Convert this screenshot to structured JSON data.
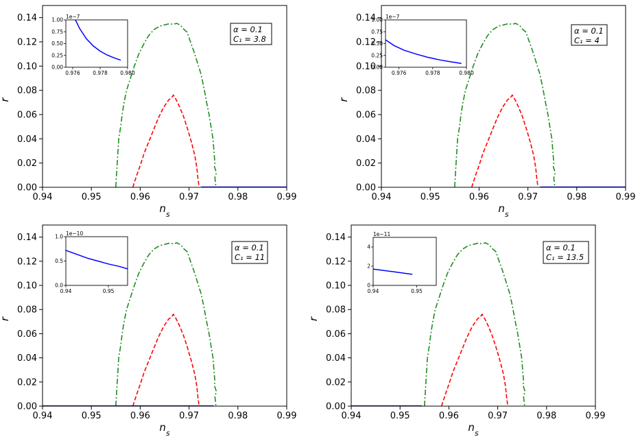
{
  "figure": {
    "contour_styles": {
      "outer": {
        "color": "#228B22",
        "dash": "dash-dot"
      },
      "inner": {
        "color": "#ff0000",
        "dash": "dashed"
      },
      "model": {
        "color": "#0000ff",
        "dash": "solid"
      }
    }
  },
  "chart_data": [
    {
      "type": "line",
      "xlabel": "n_s",
      "ylabel": "r",
      "xlim": [
        0.94,
        0.99
      ],
      "ylim": [
        0,
        0.15
      ],
      "xticks": [
        "0.94",
        "0.95",
        "0.96",
        "0.97",
        "0.98",
        "0.99"
      ],
      "yticks": [
        "0.00",
        "0.02",
        "0.04",
        "0.06",
        "0.08",
        "0.10",
        "0.12",
        "0.14"
      ],
      "legend_box": [
        "α = 0.1",
        "C₁ = 3.8"
      ],
      "legend_placement": "top-right",
      "contour_outer_shape": "standard",
      "model_line": {
        "x": [
          0.9725,
          0.99
        ],
        "y": [
          0,
          0
        ]
      },
      "inset": {
        "placement": "top-left",
        "xlim": [
          0.9755,
          0.98
        ],
        "ylim": [
          0,
          1.0
        ],
        "xticks": [
          "0.976",
          "0.978",
          "0.980"
        ],
        "yticks": [
          "0.00",
          "0.25",
          "0.50",
          "0.75",
          "1.00"
        ],
        "offset_text": "1e−7",
        "series": {
          "x": [
            0.9762,
            0.9765,
            0.977,
            0.9775,
            0.978,
            0.9785,
            0.979,
            0.9795
          ],
          "y": [
            1.0,
            0.82,
            0.6,
            0.45,
            0.34,
            0.26,
            0.2,
            0.15
          ]
        }
      }
    },
    {
      "type": "line",
      "xlabel": "n_s",
      "ylabel": "r",
      "xlim": [
        0.94,
        0.99
      ],
      "ylim": [
        0,
        0.15
      ],
      "xticks": [
        "0.94",
        "0.95",
        "0.96",
        "0.97",
        "0.98",
        "0.99"
      ],
      "yticks": [
        "0.00",
        "0.02",
        "0.04",
        "0.06",
        "0.08",
        "0.10",
        "0.12",
        "0.14"
      ],
      "legend_box": [
        "α = 0.1",
        "C₁ = 4"
      ],
      "legend_placement": "top-right",
      "contour_outer_shape": "standard",
      "model_line": {
        "x": [
          0.9725,
          0.99
        ],
        "y": [
          0,
          0
        ]
      },
      "inset": {
        "placement": "top-left",
        "xlim": [
          0.9752,
          0.98
        ],
        "ylim": [
          0,
          1.0
        ],
        "xticks": [
          "0.976",
          "0.978",
          "0.980"
        ],
        "yticks": [
          "0.00",
          "0.25",
          "0.50",
          "0.75",
          "1.00"
        ],
        "offset_text": "1e−7",
        "series": {
          "x": [
            0.9752,
            0.9757,
            0.9763,
            0.977,
            0.9777,
            0.9785,
            0.979,
            0.9797
          ],
          "y": [
            0.58,
            0.46,
            0.36,
            0.28,
            0.21,
            0.15,
            0.12,
            0.08
          ]
        }
      }
    },
    {
      "type": "line",
      "xlabel": "n_s",
      "ylabel": "r",
      "xlim": [
        0.94,
        0.99
      ],
      "ylim": [
        0,
        0.15
      ],
      "xticks": [
        "0.94",
        "0.95",
        "0.96",
        "0.97",
        "0.98",
        "0.99"
      ],
      "yticks": [
        "0.00",
        "0.02",
        "0.04",
        "0.06",
        "0.08",
        "0.10",
        "0.12",
        "0.14"
      ],
      "legend_box": [
        "α = 0.1",
        "C₁ = 11"
      ],
      "legend_placement": "top-right",
      "contour_outer_shape": "standard",
      "model_line": {
        "x": [
          0.94,
          0.975
        ],
        "y": [
          0,
          0
        ]
      },
      "inset": {
        "placement": "top-left",
        "xlim": [
          0.94,
          0.9545
        ],
        "ylim": [
          0,
          1.0
        ],
        "xticks": [
          "0.94",
          "0.95"
        ],
        "yticks": [
          "0.0",
          "0.5",
          "1.0"
        ],
        "offset_text": "1e−10",
        "series": {
          "x": [
            0.94,
            0.9425,
            0.945,
            0.9475,
            0.95,
            0.9525,
            0.9545
          ],
          "y": [
            0.72,
            0.64,
            0.56,
            0.5,
            0.44,
            0.39,
            0.34
          ]
        }
      }
    },
    {
      "type": "line",
      "xlabel": "n_s",
      "ylabel": "r",
      "xlim": [
        0.94,
        0.99
      ],
      "ylim": [
        0,
        0.15
      ],
      "xticks": [
        "0.94",
        "0.95",
        "0.96",
        "0.97",
        "0.98",
        "0.99"
      ],
      "yticks": [
        "0.00",
        "0.02",
        "0.04",
        "0.06",
        "0.08",
        "0.10",
        "0.12",
        "0.14"
      ],
      "legend_box": [
        "α = 0.1",
        "C₁ = 13.5"
      ],
      "legend_placement": "top-right",
      "contour_outer_shape": "standard",
      "model_line": {
        "x": [
          0.94,
          0.9545
        ],
        "y": [
          0,
          0
        ]
      },
      "inset": {
        "placement": "top-left",
        "xlim": [
          0.94,
          0.9545
        ],
        "ylim": [
          0,
          5
        ],
        "xticks": [
          "0.94",
          "0.95"
        ],
        "yticks": [
          "0",
          "2",
          "4"
        ],
        "offset_text": "1e−11",
        "series": {
          "x": [
            0.94,
            0.945,
            0.949
          ],
          "y": [
            1.7,
            1.4,
            1.15
          ]
        }
      }
    }
  ],
  "contour_outer": {
    "x": [
      0.955,
      0.9553,
      0.9556,
      0.956,
      0.9563,
      0.9567,
      0.9572,
      0.958,
      0.9588,
      0.9597,
      0.9607,
      0.9617,
      0.9628,
      0.964,
      0.965,
      0.966,
      0.9667,
      0.9675,
      0.9683,
      0.969,
      0.9696,
      0.9703,
      0.971,
      0.9717,
      0.9724,
      0.973,
      0.9736,
      0.9741,
      0.9745,
      0.9749,
      0.9751,
      0.9753,
      0.9752,
      0.9756,
      0.9753,
      0.9755
    ],
    "y": [
      0.0,
      0.02,
      0.04,
      0.05,
      0.06,
      0.07,
      0.08,
      0.09,
      0.1,
      0.11,
      0.118,
      0.125,
      0.13,
      0.133,
      0.134,
      0.135,
      0.1345,
      0.1352,
      0.1335,
      0.13,
      0.128,
      0.12,
      0.112,
      0.103,
      0.094,
      0.083,
      0.07,
      0.06,
      0.05,
      0.04,
      0.03,
      0.02,
      0.017,
      0.012,
      0.008,
      0.0
    ]
  },
  "contour_inner": {
    "x": [
      0.9585,
      0.9588,
      0.9593,
      0.96,
      0.9608,
      0.9617,
      0.9627,
      0.9637,
      0.9648,
      0.9658,
      0.9664,
      0.9668,
      0.9674,
      0.9681,
      0.9689,
      0.9697,
      0.9705,
      0.9712,
      0.9716,
      0.9718,
      0.972,
      0.972
    ],
    "y": [
      0.0,
      0.004,
      0.01,
      0.018,
      0.028,
      0.037,
      0.047,
      0.057,
      0.066,
      0.072,
      0.074,
      0.076,
      0.072,
      0.066,
      0.058,
      0.048,
      0.037,
      0.026,
      0.016,
      0.008,
      0.002,
      0.0
    ]
  }
}
